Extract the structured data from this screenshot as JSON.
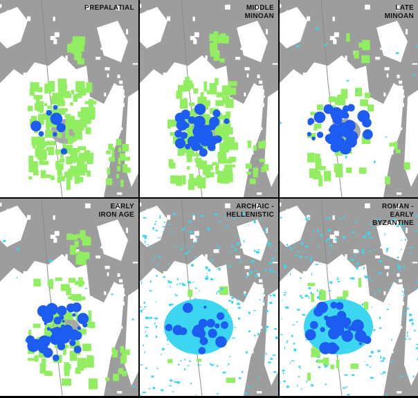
{
  "panels": [
    {
      "label": [
        "PREPALATIAL"
      ]
    },
    {
      "label": [
        "MIDDLE",
        "MINOAN"
      ]
    },
    {
      "label": [
        "LATE",
        "MINOAN"
      ]
    },
    {
      "label": [
        "EARLY",
        "IRON AGE"
      ]
    },
    {
      "label": [
        "ARCHAIC -",
        "HELLENISTIC"
      ]
    },
    {
      "label": [
        "ROMAN -",
        "EARLY",
        "BYZANTINE"
      ]
    }
  ]
}
